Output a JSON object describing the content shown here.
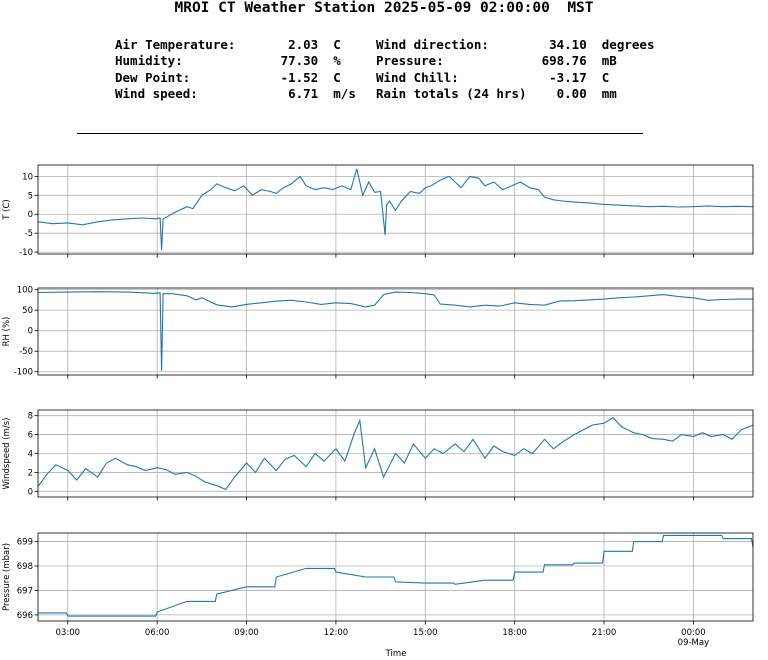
{
  "header": {
    "title": "MROI CT Weather Station 2025-05-09 02:00:00  MST"
  },
  "summary_left": [
    {
      "label": "Air Temperature:",
      "value": "2.03",
      "unit": "C"
    },
    {
      "label": "Humidity:",
      "value": "77.30",
      "unit": "%"
    },
    {
      "label": "Dew Point:",
      "value": "-1.52",
      "unit": "C"
    },
    {
      "label": "Wind speed:",
      "value": "6.71",
      "unit": "m/s"
    }
  ],
  "summary_right": [
    {
      "label": "Wind direction:",
      "value": "34.10",
      "unit": "degrees"
    },
    {
      "label": "Pressure:",
      "value": "698.76",
      "unit": "mB"
    },
    {
      "label": "Wind Chill:",
      "value": "-3.17",
      "unit": "C"
    },
    {
      "label": "Rain totals (24 hrs)",
      "value": "0.00",
      "unit": "mm"
    }
  ],
  "chart_data": [
    {
      "type": "line",
      "ylabel": "T (C)",
      "ylim": [
        -10.5,
        13
      ],
      "yticks": [
        10,
        5,
        0,
        -5,
        -10
      ],
      "grid": true,
      "color": "#1f77b4",
      "x_hours": [
        2.0,
        2.5,
        3.0,
        3.5,
        4.0,
        4.5,
        5.0,
        5.5,
        5.95,
        6.1,
        6.15,
        6.2,
        6.3,
        6.6,
        7.0,
        7.2,
        7.5,
        7.8,
        8.0,
        8.3,
        8.6,
        8.9,
        9.2,
        9.5,
        9.8,
        10.0,
        10.2,
        10.5,
        10.8,
        11.0,
        11.3,
        11.6,
        11.9,
        12.2,
        12.5,
        12.7,
        12.9,
        13.1,
        13.3,
        13.5,
        13.65,
        13.7,
        13.8,
        14.0,
        14.2,
        14.5,
        14.8,
        15.0,
        15.2,
        15.5,
        15.8,
        16.0,
        16.2,
        16.5,
        16.8,
        17.0,
        17.3,
        17.6,
        17.9,
        18.2,
        18.5,
        18.8,
        19.0,
        19.3,
        19.6,
        20.0,
        20.5,
        21.0,
        21.5,
        22.0,
        22.5,
        23.0,
        23.5,
        24.0,
        24.5,
        25.0,
        25.5,
        26.0
      ],
      "values": [
        -2.0,
        -2.5,
        -2.3,
        -2.8,
        -2.0,
        -1.5,
        -1.2,
        -1.0,
        -1.2,
        -1.0,
        -9.5,
        -1.2,
        -0.8,
        0.5,
        2.0,
        1.5,
        5.0,
        6.5,
        8.0,
        7.0,
        6.2,
        7.5,
        5.0,
        6.5,
        6.0,
        5.5,
        6.8,
        8.0,
        10.0,
        7.5,
        6.5,
        7.0,
        6.5,
        7.5,
        6.5,
        12.0,
        5.0,
        8.5,
        5.8,
        6.0,
        -5.5,
        2.5,
        3.5,
        1.0,
        3.5,
        6.0,
        5.5,
        7.0,
        7.5,
        9.0,
        10.0,
        8.5,
        7.0,
        10.0,
        9.5,
        7.5,
        8.5,
        6.5,
        7.5,
        8.5,
        7.0,
        6.5,
        4.5,
        3.8,
        3.5,
        3.2,
        3.0,
        2.6,
        2.4,
        2.2,
        2.0,
        2.1,
        1.9,
        2.0,
        2.2,
        2.0,
        2.1,
        2.0
      ]
    },
    {
      "type": "line",
      "ylabel": "RH (%)",
      "ylim": [
        -108,
        104
      ],
      "yticks": [
        100,
        50,
        0,
        -50,
        -100
      ],
      "grid": true,
      "color": "#1f77b4",
      "x_hours": [
        2.0,
        3.0,
        4.0,
        5.0,
        5.9,
        6.1,
        6.15,
        6.2,
        6.5,
        7.0,
        7.3,
        7.5,
        8.0,
        8.5,
        9.0,
        9.5,
        10.0,
        10.5,
        11.0,
        11.5,
        12.0,
        12.5,
        13.0,
        13.3,
        13.6,
        14.0,
        14.5,
        15.0,
        15.3,
        15.5,
        16.0,
        16.5,
        17.0,
        17.5,
        18.0,
        18.5,
        19.0,
        19.5,
        20.0,
        20.5,
        21.0,
        21.5,
        22.0,
        22.5,
        23.0,
        23.5,
        24.0,
        24.5,
        25.0,
        25.5,
        26.0
      ],
      "values": [
        93,
        94,
        95,
        94,
        91,
        92,
        -98,
        90,
        90,
        85,
        75,
        80,
        63,
        58,
        64,
        68,
        72,
        74,
        70,
        64,
        68,
        66,
        58,
        62,
        88,
        94,
        93,
        90,
        87,
        65,
        62,
        58,
        62,
        60,
        68,
        64,
        62,
        72,
        73,
        75,
        77,
        80,
        82,
        85,
        88,
        83,
        80,
        74,
        76,
        77,
        77
      ]
    },
    {
      "type": "line",
      "ylabel": "Windspeed (m/s)",
      "ylim": [
        -0.6,
        8.6
      ],
      "yticks": [
        8,
        6,
        4,
        2,
        0
      ],
      "grid": true,
      "color": "#1f77b4",
      "x_hours": [
        2.0,
        2.3,
        2.6,
        3.0,
        3.3,
        3.6,
        4.0,
        4.3,
        4.6,
        5.0,
        5.3,
        5.6,
        6.0,
        6.3,
        6.6,
        7.0,
        7.3,
        7.6,
        8.0,
        8.3,
        8.6,
        9.0,
        9.3,
        9.6,
        10.0,
        10.3,
        10.6,
        11.0,
        11.3,
        11.6,
        12.0,
        12.3,
        12.6,
        12.8,
        13.0,
        13.3,
        13.6,
        14.0,
        14.3,
        14.6,
        15.0,
        15.3,
        15.6,
        16.0,
        16.3,
        16.6,
        17.0,
        17.3,
        17.6,
        18.0,
        18.3,
        18.6,
        19.0,
        19.3,
        19.6,
        20.0,
        20.3,
        20.6,
        21.0,
        21.3,
        21.6,
        22.0,
        22.3,
        22.6,
        23.0,
        23.3,
        23.6,
        24.0,
        24.3,
        24.6,
        25.0,
        25.3,
        25.6,
        26.0
      ],
      "values": [
        0.5,
        1.8,
        2.8,
        2.2,
        1.2,
        2.4,
        1.5,
        3.0,
        3.5,
        2.8,
        2.6,
        2.2,
        2.5,
        2.3,
        1.8,
        2.0,
        1.6,
        1.0,
        0.6,
        0.2,
        1.5,
        3.0,
        2.0,
        3.5,
        2.2,
        3.4,
        3.8,
        2.6,
        4.0,
        3.2,
        4.5,
        3.2,
        6.0,
        7.5,
        2.5,
        4.5,
        1.5,
        4.0,
        3.0,
        5.0,
        3.5,
        4.5,
        4.0,
        5.0,
        4.2,
        5.5,
        3.5,
        4.8,
        4.2,
        3.8,
        4.5,
        4.0,
        5.5,
        4.5,
        5.2,
        6.0,
        6.5,
        7.0,
        7.2,
        7.8,
        6.8,
        6.2,
        6.0,
        5.6,
        5.5,
        5.3,
        6.0,
        5.8,
        6.2,
        5.8,
        6.0,
        5.5,
        6.5,
        7.0
      ]
    },
    {
      "type": "line",
      "step": true,
      "ylabel": "Pressure (mbar)",
      "xlabel": "Time",
      "ylim": [
        695.75,
        699.35
      ],
      "yticks": [
        699,
        698,
        697,
        696
      ],
      "grid": true,
      "color": "#1f77b4",
      "x_hours": [
        2.0,
        2.95,
        3.0,
        5.95,
        6.0,
        7.0,
        7.95,
        8.0,
        9.0,
        9.95,
        10.0,
        11.0,
        11.95,
        12.0,
        13.0,
        13.95,
        14.0,
        15.0,
        15.95,
        16.0,
        17.0,
        17.95,
        18.0,
        18.95,
        19.0,
        19.95,
        20.0,
        20.95,
        21.0,
        21.95,
        22.0,
        22.95,
        23.0,
        23.95,
        24.0,
        24.95,
        25.0,
        25.95,
        26.0
      ],
      "values": [
        696.08,
        696.08,
        695.95,
        695.95,
        696.12,
        696.55,
        696.55,
        696.85,
        697.15,
        697.15,
        697.55,
        697.9,
        697.9,
        697.75,
        697.55,
        697.55,
        697.35,
        697.3,
        697.3,
        697.25,
        697.42,
        697.42,
        697.75,
        697.75,
        698.05,
        698.05,
        698.12,
        698.12,
        698.6,
        698.6,
        699.0,
        699.0,
        699.25,
        699.25,
        699.25,
        699.25,
        699.12,
        699.12,
        698.78
      ]
    }
  ],
  "x_axis": {
    "ticks": [
      3,
      6,
      9,
      12,
      15,
      18,
      21,
      24
    ],
    "tick_labels": [
      "03:00",
      "06:00",
      "09:00",
      "12:00",
      "15:00",
      "18:00",
      "21:00",
      "00:00"
    ],
    "secondary_label": "09-May",
    "xlim": [
      2.0,
      26.0
    ]
  }
}
